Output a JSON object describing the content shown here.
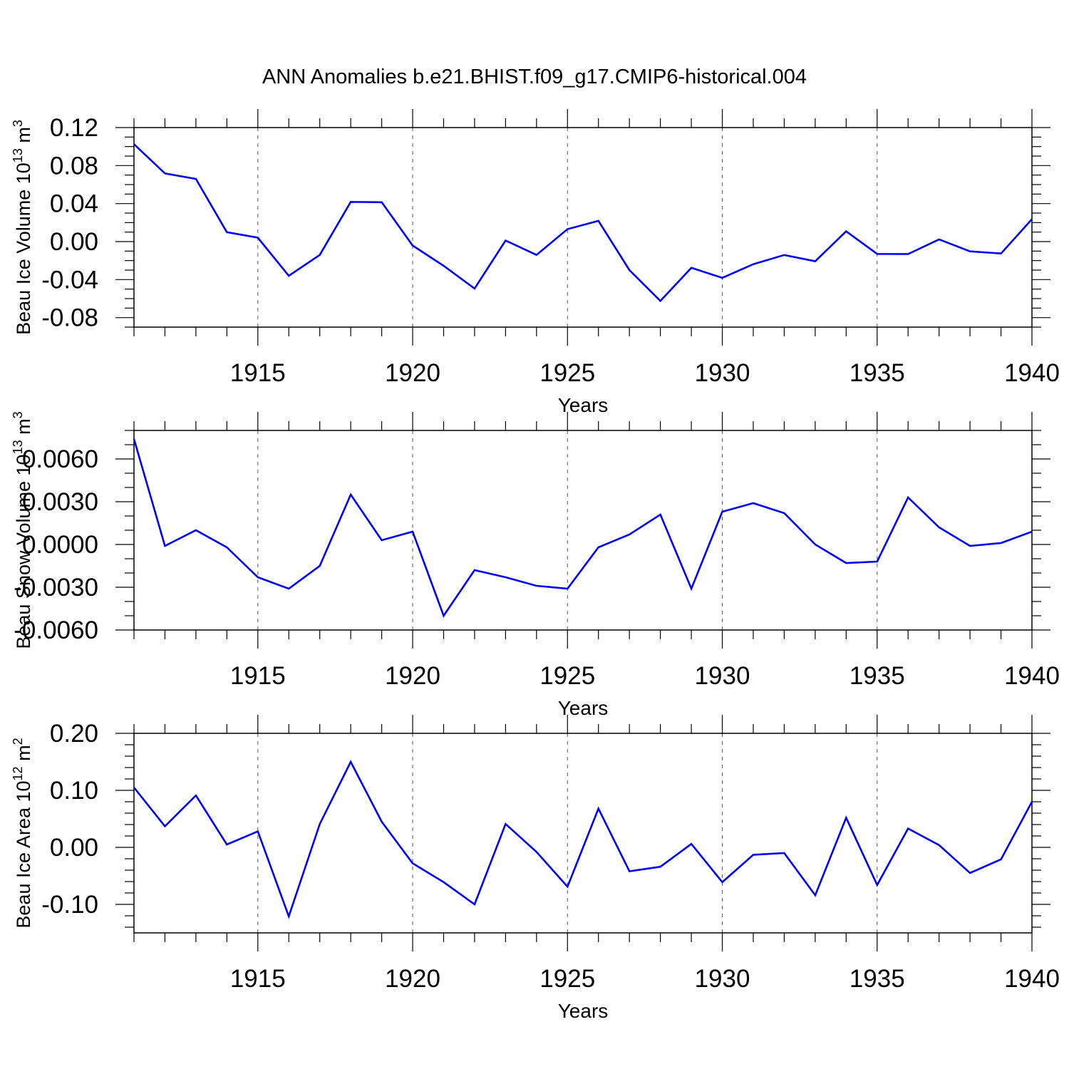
{
  "title": "ANN Anomalies b.e21.BHIST.f09_g17.CMIP6-historical.004",
  "colors": {
    "line": "#0000ff",
    "axis": "#000000",
    "grid": "#555555",
    "background": "#ffffff"
  },
  "chart_data": [
    {
      "type": "line",
      "name": "Beau Ice Volume",
      "ylabel": {
        "prefix": "Beau Ice Volume 10",
        "exp": "13",
        "mid": " m",
        "unit_exp": "3"
      },
      "xlabel": "Years",
      "xlim": [
        1911,
        1940
      ],
      "ylim": [
        -0.09,
        0.12
      ],
      "yticks": [
        0.12,
        0.08,
        0.04,
        0.0,
        -0.04,
        -0.08
      ],
      "ytick_labels": [
        "0.12",
        "0.08",
        "0.04",
        "0.00",
        "-0.04",
        "-0.08"
      ],
      "yminor_step": 0.01,
      "xticks": [
        1915,
        1920,
        1925,
        1930,
        1935,
        1940
      ],
      "xtick_labels": [
        "1915",
        "1920",
        "1925",
        "1930",
        "1935",
        "1940"
      ],
      "grid": "vertical dashed at major x ticks",
      "x": [
        1911,
        1912,
        1913,
        1914,
        1915,
        1916,
        1917,
        1918,
        1919,
        1920,
        1921,
        1922,
        1923,
        1924,
        1925,
        1926,
        1927,
        1928,
        1929,
        1930,
        1931,
        1932,
        1933,
        1934,
        1935,
        1936,
        1937,
        1938,
        1939,
        1940
      ],
      "series": [
        {
          "name": "Beau Ice Volume",
          "values": [
            0.1025,
            0.0718,
            0.0659,
            0.0099,
            0.0041,
            -0.036,
            -0.014,
            0.0418,
            0.0414,
            -0.0041,
            -0.0255,
            -0.0494,
            0.0011,
            -0.014,
            0.0131,
            0.0218,
            -0.03,
            -0.0625,
            -0.0276,
            -0.0382,
            -0.0238,
            -0.0141,
            -0.0207,
            0.0108,
            -0.013,
            -0.0131,
            0.0023,
            -0.0103,
            -0.0125,
            0.0236
          ]
        }
      ]
    },
    {
      "type": "line",
      "name": "Beau Snow Volume",
      "ylabel": {
        "prefix": "Beau Snow Volume 10",
        "exp": "13",
        "mid": " m",
        "unit_exp": "3"
      },
      "xlabel": "Years",
      "xlim": [
        1911,
        1940
      ],
      "ylim": [
        -0.006,
        0.008
      ],
      "yticks": [
        0.006,
        0.003,
        0.0,
        -0.003,
        -0.006
      ],
      "ytick_labels": [
        "0.0060",
        "0.0030",
        "0.0000",
        "-0.0030",
        "-0.0060"
      ],
      "yminor_step": 0.001,
      "xticks": [
        1915,
        1920,
        1925,
        1930,
        1935,
        1940
      ],
      "xtick_labels": [
        "1915",
        "1920",
        "1925",
        "1930",
        "1935",
        "1940"
      ],
      "grid": "vertical dashed at major x ticks",
      "x": [
        1911,
        1912,
        1913,
        1914,
        1915,
        1916,
        1917,
        1918,
        1919,
        1920,
        1921,
        1922,
        1923,
        1924,
        1925,
        1926,
        1927,
        1928,
        1929,
        1930,
        1931,
        1932,
        1933,
        1934,
        1935,
        1936,
        1937,
        1938,
        1939,
        1940
      ],
      "series": [
        {
          "name": "Beau Snow Volume",
          "values": [
            0.0074,
            -0.0001,
            0.001,
            -0.0002,
            -0.0023,
            -0.0031,
            -0.0015,
            0.0035,
            0.0003,
            0.0009,
            -0.005,
            -0.0018,
            -0.0023,
            -0.0029,
            -0.0031,
            -0.0002,
            0.0007,
            0.0021,
            -0.0031,
            0.0023,
            0.0029,
            0.0022,
            0.0,
            -0.0013,
            -0.0012,
            0.0033,
            0.0012,
            -0.0001,
            0.0001,
            0.0009
          ]
        }
      ]
    },
    {
      "type": "line",
      "name": "Beau Ice Area",
      "ylabel": {
        "prefix": "Beau Ice Area 10",
        "exp": "12",
        "mid": " m",
        "unit_exp": "2"
      },
      "xlabel": "Years",
      "xlim": [
        1911,
        1940
      ],
      "ylim": [
        -0.15,
        0.2
      ],
      "yticks": [
        0.2,
        0.1,
        0.0,
        -0.1
      ],
      "ytick_labels": [
        "0.20",
        "0.10",
        "0.00",
        "-0.10"
      ],
      "yminor_step": 0.02,
      "xticks": [
        1915,
        1920,
        1925,
        1930,
        1935,
        1940
      ],
      "xtick_labels": [
        "1915",
        "1920",
        "1925",
        "1930",
        "1935",
        "1940"
      ],
      "grid": "vertical dashed at major x ticks",
      "x": [
        1911,
        1912,
        1913,
        1914,
        1915,
        1916,
        1917,
        1918,
        1919,
        1920,
        1921,
        1922,
        1923,
        1924,
        1925,
        1926,
        1927,
        1928,
        1929,
        1930,
        1931,
        1932,
        1933,
        1934,
        1935,
        1936,
        1937,
        1938,
        1939,
        1940
      ],
      "series": [
        {
          "name": "Beau Ice Area",
          "values": [
            0.105,
            0.037,
            0.091,
            0.005,
            0.028,
            -0.121,
            0.041,
            0.15,
            0.045,
            -0.028,
            -0.061,
            -0.1,
            0.041,
            -0.008,
            -0.069,
            0.068,
            -0.042,
            -0.034,
            0.006,
            -0.061,
            -0.013,
            -0.01,
            -0.084,
            0.052,
            -0.066,
            0.033,
            0.004,
            -0.045,
            -0.021,
            0.08
          ]
        }
      ]
    }
  ]
}
